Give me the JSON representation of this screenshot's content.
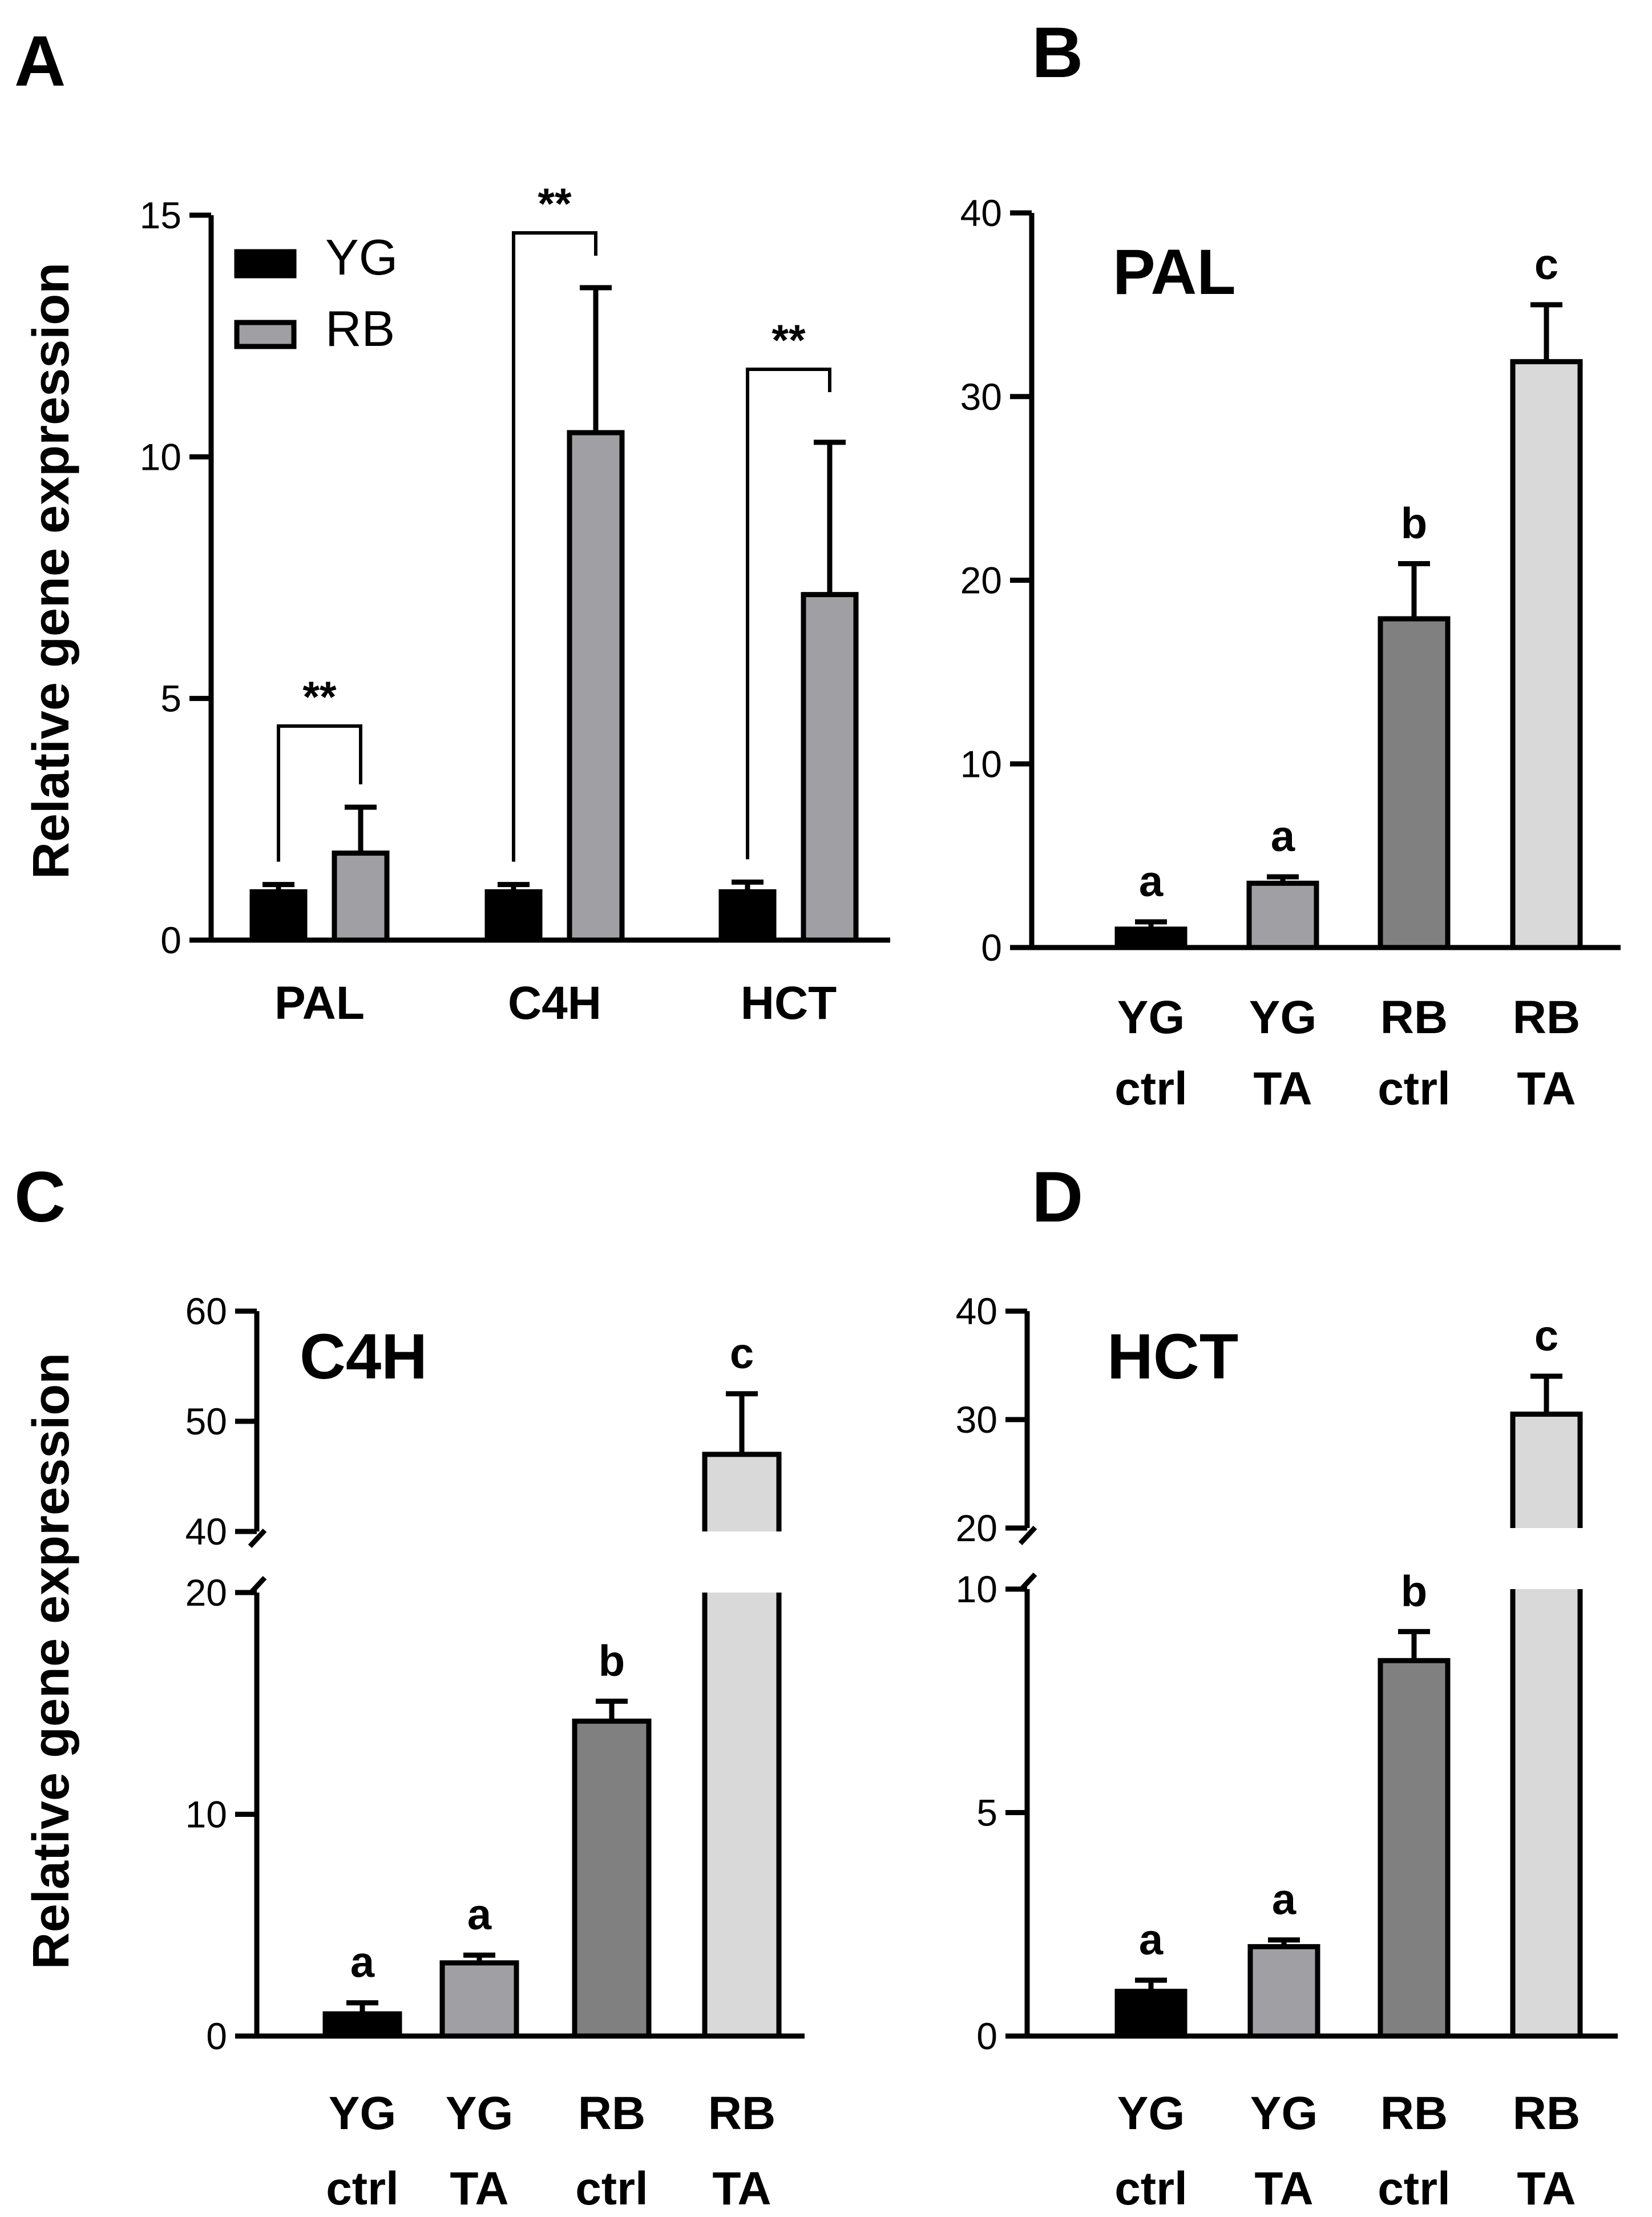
{
  "chart_data": [
    {
      "panel": "A",
      "type": "bar",
      "layout": "grouped",
      "ylabel": "Relative gene expression",
      "categories": [
        "PAL",
        "C4H",
        "HCT"
      ],
      "ylim": [
        0,
        15
      ],
      "yticks": [
        "0",
        "5",
        "10",
        "15"
      ],
      "series": [
        {
          "name": "YG",
          "color": "#000000",
          "values": [
            1.0,
            1.0,
            1.0
          ],
          "errors": [
            0.15,
            0.15,
            0.2
          ]
        },
        {
          "name": "RB",
          "color": "#a0a0a4",
          "values": [
            1.8,
            10.5,
            7.15
          ],
          "errors": [
            0.95,
            3.0,
            3.15
          ]
        }
      ],
      "significance": [
        "**",
        "**",
        "**"
      ],
      "legend": {
        "placement": "top-left",
        "entries": [
          "YG",
          "RB"
        ]
      }
    },
    {
      "panel": "B",
      "type": "bar",
      "title": "PAL",
      "categories": [
        [
          "YG",
          "ctrl"
        ],
        [
          "YG",
          "TA"
        ],
        [
          "RB",
          "ctrl"
        ],
        [
          "RB",
          "TA"
        ]
      ],
      "values": [
        1.0,
        3.5,
        17.9,
        31.9
      ],
      "errors": [
        0.4,
        0.35,
        3.0,
        3.1
      ],
      "colors": [
        "#000000",
        "#a0a0a4",
        "#808080",
        "#d9d9d9"
      ],
      "letters": [
        "a",
        "a",
        "b",
        "c"
      ],
      "ylim": [
        0,
        40
      ],
      "yticks": [
        "0",
        "10",
        "20",
        "30",
        "40"
      ]
    },
    {
      "panel": "C",
      "type": "bar",
      "title": "C4H",
      "ylabel": "Relative gene expression",
      "categories": [
        [
          "YG",
          "ctrl"
        ],
        [
          "YG",
          "TA"
        ],
        [
          "RB",
          "ctrl"
        ],
        [
          "RB",
          "TA"
        ]
      ],
      "values": [
        1.0,
        3.3,
        14.2,
        47.0
      ],
      "errors": [
        0.5,
        0.35,
        0.9,
        5.5
      ],
      "colors": [
        "#000000",
        "#a0a0a4",
        "#808080",
        "#d9d9d9"
      ],
      "letters": [
        "a",
        "a",
        "b",
        "c"
      ],
      "axis_break": {
        "lower": [
          0,
          20
        ],
        "upper": [
          40,
          60
        ]
      },
      "yticks": [
        "0",
        "10",
        "20",
        "40",
        "50",
        "60"
      ]
    },
    {
      "panel": "D",
      "type": "bar",
      "title": "HCT",
      "categories": [
        [
          "YG",
          "ctrl"
        ],
        [
          "YG",
          "TA"
        ],
        [
          "RB",
          "ctrl"
        ],
        [
          "RB",
          "TA"
        ]
      ],
      "values": [
        1.0,
        2.0,
        8.4,
        30.5
      ],
      "errors": [
        0.25,
        0.15,
        0.65,
        3.5
      ],
      "colors": [
        "#000000",
        "#a0a0a4",
        "#808080",
        "#d9d9d9"
      ],
      "letters": [
        "a",
        "a",
        "b",
        "c"
      ],
      "axis_break": {
        "lower": [
          0,
          10
        ],
        "upper": [
          20,
          40
        ]
      },
      "yticks": [
        "0",
        "5",
        "10",
        "20",
        "30",
        "40"
      ]
    }
  ]
}
